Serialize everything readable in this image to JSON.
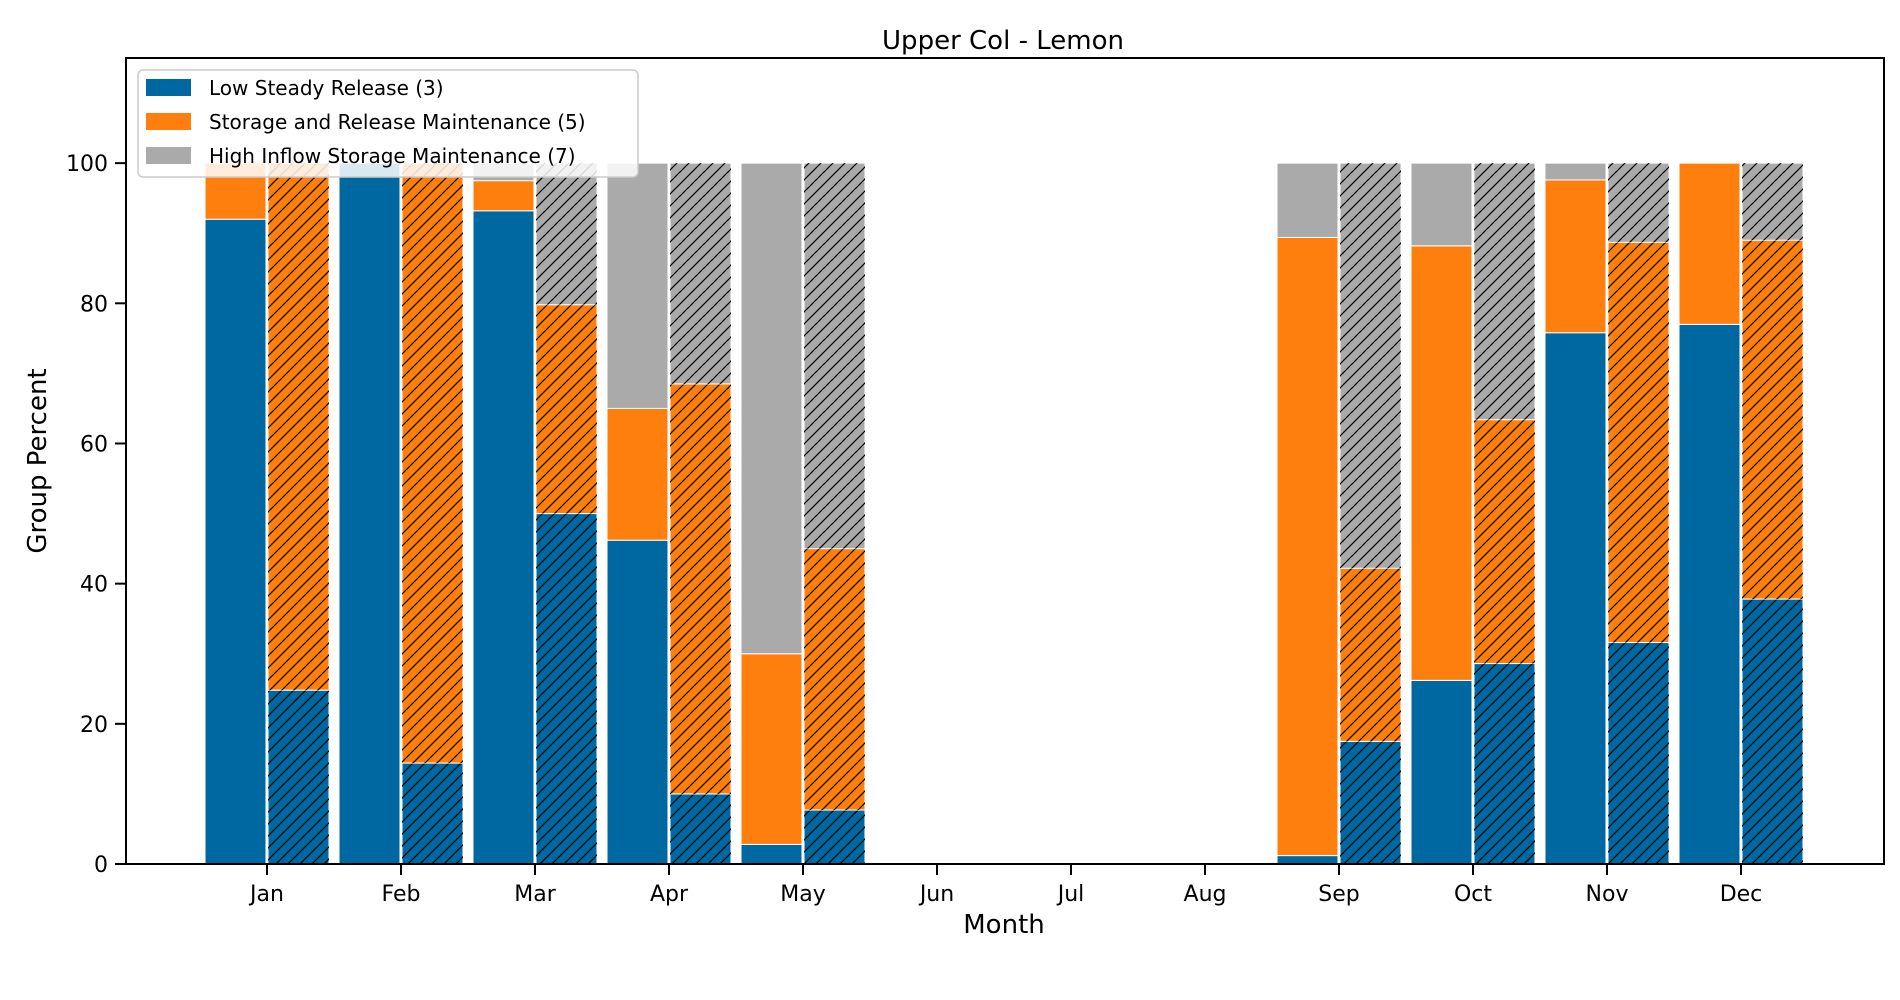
{
  "chart_data": {
    "type": "bar",
    "title": "Upper Col - Lemon",
    "xlabel": "Month",
    "ylabel": "Group Percent",
    "ylim": [
      0,
      115
    ],
    "yticks": [
      0,
      20,
      40,
      60,
      80,
      100
    ],
    "categories": [
      "Jan",
      "Feb",
      "Mar",
      "Apr",
      "May",
      "Jun",
      "Jul",
      "Aug",
      "Sep",
      "Oct",
      "Nov",
      "Dec"
    ],
    "stacked": true,
    "grid": false,
    "legend_position": "top-left",
    "series": [
      {
        "name": "Low Steady Release (3)",
        "color": "#0068a0",
        "solid": [
          92,
          100,
          93.2,
          46.2,
          2.8,
          null,
          null,
          null,
          1.2,
          26.2,
          75.8,
          77
        ],
        "hatched": [
          24.8,
          14.4,
          50,
          10,
          7.7,
          null,
          null,
          null,
          17.5,
          28.6,
          31.6,
          37.8
        ]
      },
      {
        "name": "Storage and Release Maintenance (5)",
        "color": "#ff7f0e",
        "solid": [
          8,
          0,
          4.3,
          18.8,
          27.2,
          null,
          null,
          null,
          88.2,
          62,
          21.8,
          23
        ],
        "hatched": [
          75.2,
          85.6,
          29.8,
          58.5,
          37.3,
          null,
          null,
          null,
          24.7,
          34.8,
          57.1,
          51.2
        ]
      },
      {
        "name": "High Inflow Storage Maintenance (7)",
        "color": "#aaaaaa",
        "solid": [
          0,
          0,
          2.5,
          35,
          70,
          null,
          null,
          null,
          10.6,
          11.8,
          2.4,
          0
        ],
        "hatched": [
          0,
          0,
          20.2,
          31.5,
          55,
          null,
          null,
          null,
          57.8,
          36.6,
          11.3,
          11
        ]
      }
    ]
  }
}
